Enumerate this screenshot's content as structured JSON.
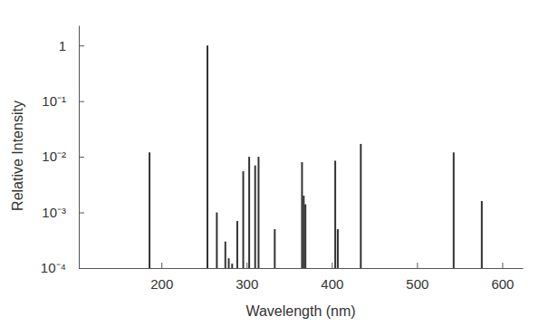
{
  "chart_data": {
    "type": "bar",
    "x_label": "Wavelength (nm)",
    "y_label": "Relative Intensity",
    "x": [
      186,
      254,
      265,
      275,
      279,
      283,
      289,
      296,
      303,
      310,
      314,
      333,
      365,
      367,
      369,
      404,
      407,
      434,
      543,
      576
    ],
    "values": [
      0.012,
      1,
      0.001,
      0.0003,
      0.00015,
      0.00012,
      0.0007,
      0.0055,
      0.01,
      0.007,
      0.01,
      0.0005,
      0.008,
      0.002,
      0.0014,
      0.0085,
      0.0005,
      0.017,
      0.012,
      0.0016
    ],
    "color": "#333333",
    "xlim": [
      103,
      624
    ],
    "ylim": [
      0.0001,
      2.3
    ],
    "xticks": [
      200,
      300,
      400,
      500,
      600
    ],
    "yticks": [
      1,
      {
        "value": 0.1,
        "label": "10⁻¹"
      },
      {
        "value": 0.01,
        "label": "10⁻²"
      },
      {
        "value": 0.001,
        "label": "10⁻³"
      },
      {
        "value": 0.0001,
        "label": "10⁻⁴"
      }
    ],
    "log": "y",
    "grid": false
  }
}
